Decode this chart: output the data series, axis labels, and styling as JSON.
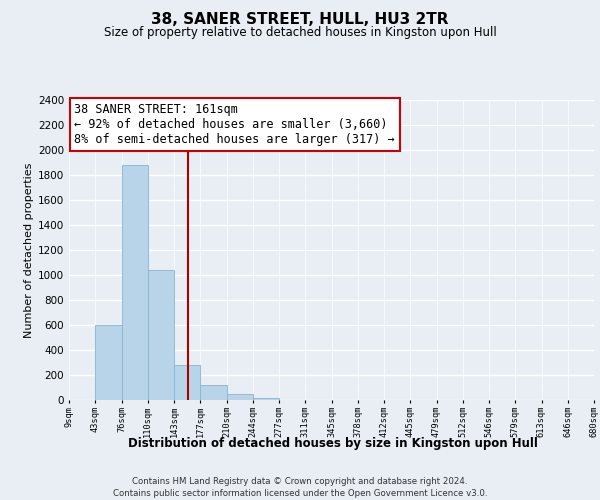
{
  "title": "38, SANER STREET, HULL, HU3 2TR",
  "subtitle": "Size of property relative to detached houses in Kingston upon Hull",
  "xlabel": "Distribution of detached houses by size in Kingston upon Hull",
  "ylabel": "Number of detached properties",
  "bin_labels": [
    "9sqm",
    "43sqm",
    "76sqm",
    "110sqm",
    "143sqm",
    "177sqm",
    "210sqm",
    "244sqm",
    "277sqm",
    "311sqm",
    "345sqm",
    "378sqm",
    "412sqm",
    "445sqm",
    "479sqm",
    "512sqm",
    "546sqm",
    "579sqm",
    "613sqm",
    "646sqm",
    "680sqm"
  ],
  "bar_values": [
    0,
    600,
    1880,
    1040,
    280,
    120,
    50,
    15,
    0,
    0,
    0,
    0,
    0,
    0,
    0,
    0,
    0,
    0,
    0,
    0
  ],
  "bar_color": "#b8d4e8",
  "bar_edge_color": "#8ab4d0",
  "vline_x_index": 4.53,
  "vline_color": "#aa0000",
  "annotation_text": "38 SANER STREET: 161sqm\n← 92% of detached houses are smaller (3,660)\n8% of semi-detached houses are larger (317) →",
  "annotation_box_color": "#ffffff",
  "annotation_box_edge": "#cc0000",
  "ylim": [
    0,
    2400
  ],
  "yticks": [
    0,
    200,
    400,
    600,
    800,
    1000,
    1200,
    1400,
    1600,
    1800,
    2000,
    2200,
    2400
  ],
  "footer_line1": "Contains HM Land Registry data © Crown copyright and database right 2024.",
  "footer_line2": "Contains public sector information licensed under the Open Government Licence v3.0.",
  "background_color": "#e8eef4",
  "grid_color": "#ffffff"
}
